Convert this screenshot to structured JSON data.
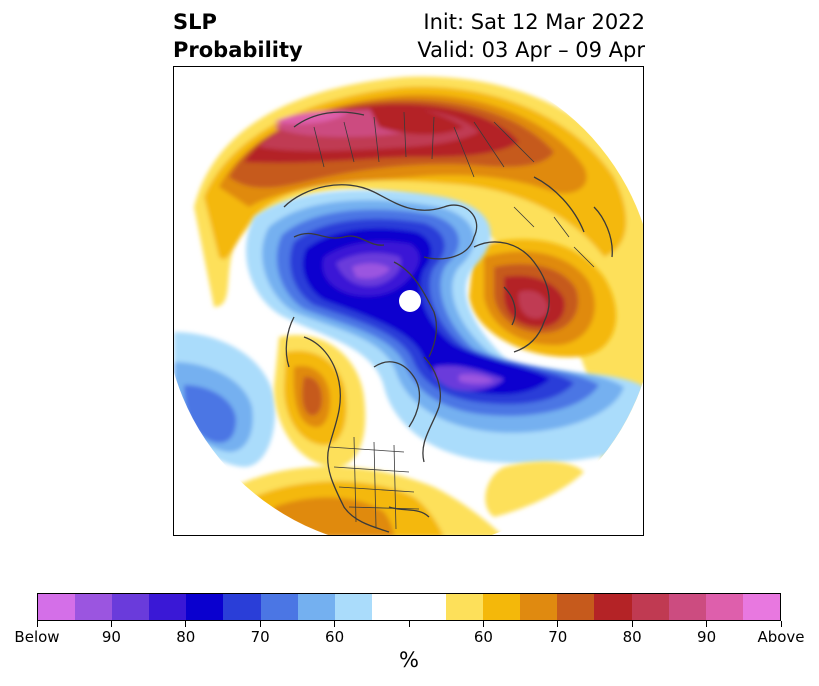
{
  "title": {
    "left_line1": "SLP",
    "left_line2": "Probability",
    "right_line1": "Init: Sat 12 Mar 2022",
    "right_line2": "Valid: 03 Apr – 09 Apr"
  },
  "colorbar": {
    "colors": [
      "#d46fe8",
      "#9b55e0",
      "#6a3bdb",
      "#3a18d6",
      "#0a00cf",
      "#2a3ed8",
      "#4b76e4",
      "#74b0f0",
      "#aadcfb",
      "#ffffff",
      "#ffffff",
      "#fde05a",
      "#f4b80a",
      "#e08a10",
      "#c65a1c",
      "#b42326",
      "#c03a52",
      "#cc4c80",
      "#de5fac",
      "#e878e0"
    ],
    "tick_labels": [
      "Below",
      "90",
      "80",
      "70",
      "60",
      "",
      "60",
      "70",
      "80",
      "90",
      "Above"
    ],
    "unit_label": "%"
  },
  "map": {
    "projection": "north-polar-stereographic",
    "variable": "sea-level-pressure-probability",
    "features": [
      "coastlines",
      "country-borders",
      "us-state-borders"
    ]
  }
}
